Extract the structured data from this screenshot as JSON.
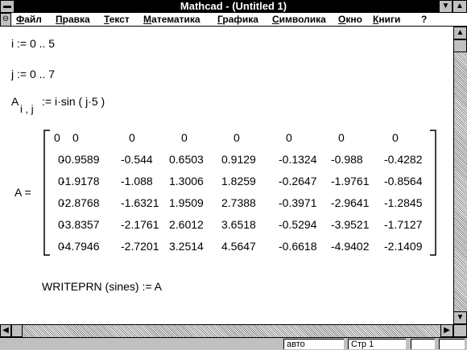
{
  "window": {
    "title": "Mathcad - (Untitled 1)"
  },
  "menu": [
    "Файл",
    "Правка",
    "Текст",
    "Математика",
    "Графика",
    "Символика",
    "Окно",
    "Книги",
    "?"
  ],
  "document": {
    "range_i": "i  :=  0 .. 5",
    "range_j": "j  :=  0 .. 7",
    "definition": {
      "name": "A",
      "subscript": "i , j",
      "body": ":=  i·sin ( j·5 )"
    },
    "matrix": {
      "label": "A  =",
      "rows": [
        [
          "0",
          "0",
          "0",
          "0",
          "0",
          "0",
          "0",
          "0"
        ],
        [
          "0",
          "-0.9589",
          "-0.544",
          "0.6503",
          "0.9129",
          "-0.1324",
          "-0.988",
          "-0.4282"
        ],
        [
          "0",
          "-1.9178",
          "-1.088",
          "1.3006",
          "1.8259",
          "-0.2647",
          "-1.9761",
          "-0.8564"
        ],
        [
          "0",
          "-2.8768",
          "-1.6321",
          "1.9509",
          "2.7388",
          "-0.3971",
          "-2.9641",
          "-1.2845"
        ],
        [
          "0",
          "-3.8357",
          "-2.1761",
          "2.6012",
          "3.6518",
          "-0.5294",
          "-3.9521",
          "-1.7127"
        ],
        [
          "0",
          "-4.7946",
          "-2.7201",
          "3.2514",
          "4.5647",
          "-0.6618",
          "-4.9402",
          "-2.1409"
        ]
      ]
    },
    "writeprn": "WRITEPRN (sines)  :=  A"
  },
  "status": [
    "авто",
    "Стр  1"
  ]
}
